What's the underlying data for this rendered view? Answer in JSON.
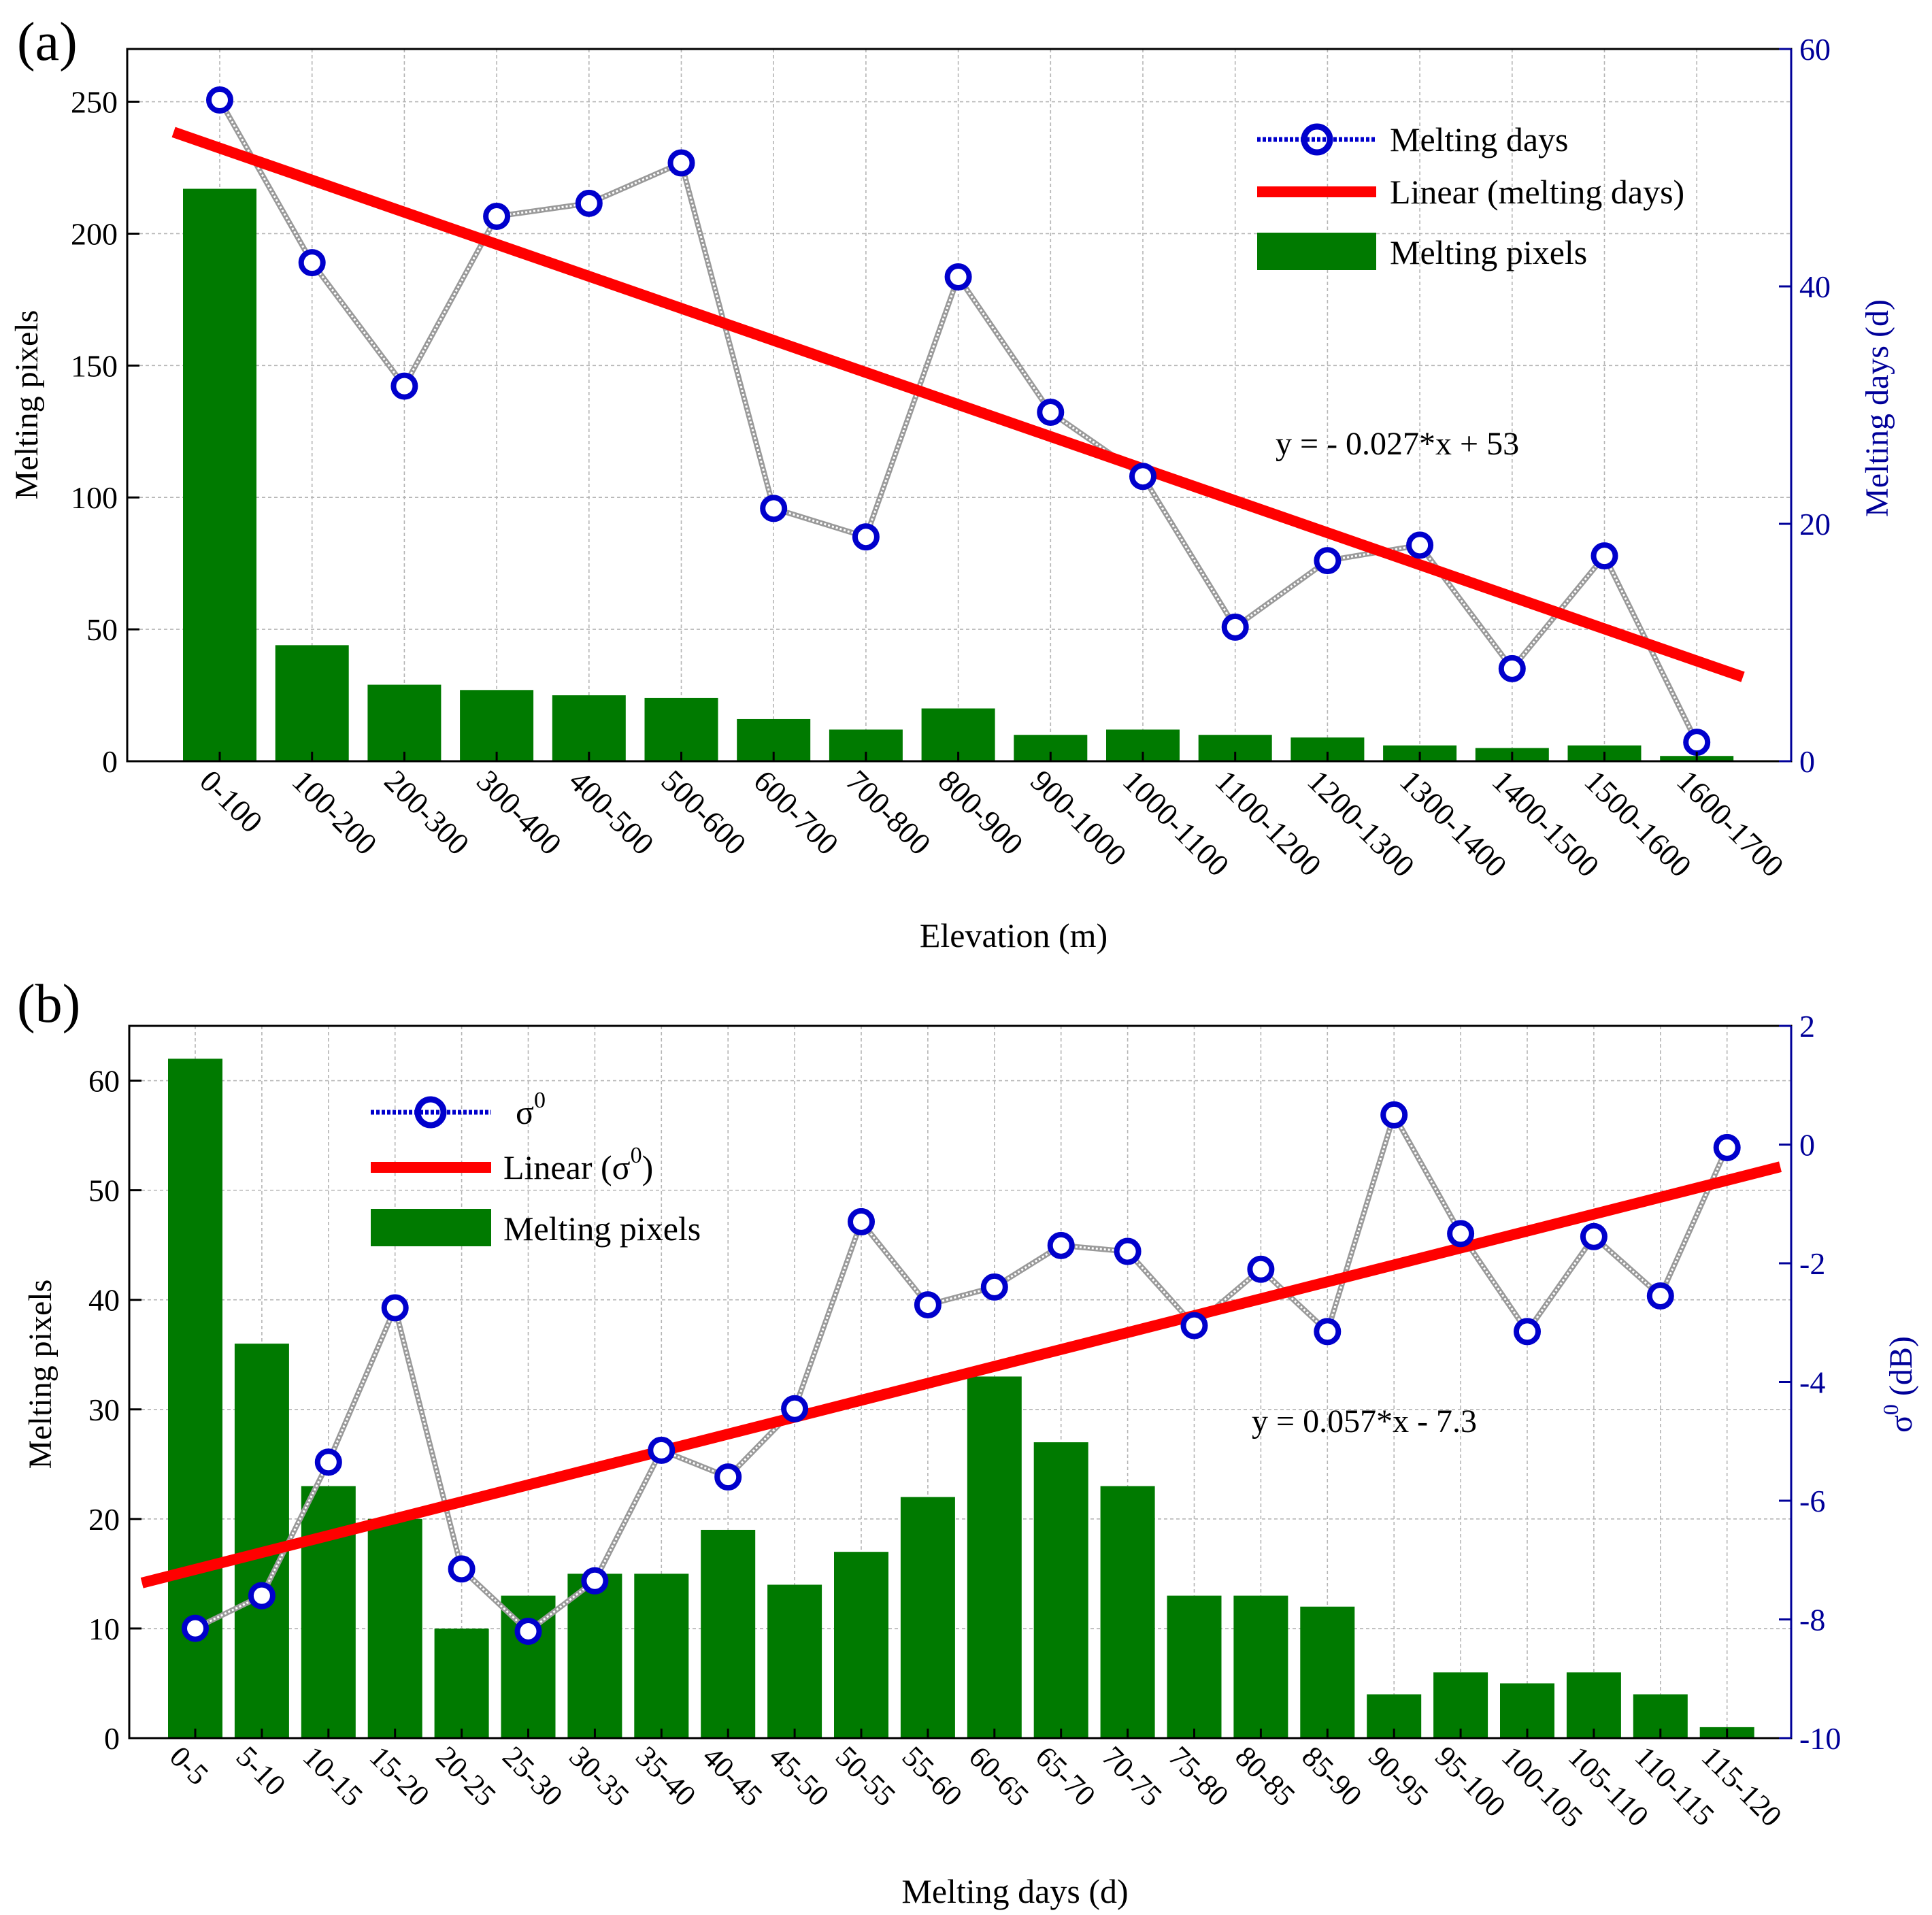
{
  "chart_data": [
    {
      "panel_label": "(a)",
      "type": "bar",
      "xlabel": "Elevation (m)",
      "ylabel": "Melting pixels",
      "y2label": "Melting days (d)",
      "ylim": [
        0,
        270
      ],
      "y2lim": [
        0,
        60
      ],
      "yticks": [
        0,
        50,
        100,
        150,
        200,
        250
      ],
      "y2ticks": [
        0,
        20,
        40,
        60
      ],
      "categories": [
        "0-100",
        "100-200",
        "200-300",
        "300-400",
        "400-500",
        "500-600",
        "600-700",
        "700-800",
        "800-900",
        "900-1000",
        "1000-1100",
        "1100-1200",
        "1200-1300",
        "1300-1400",
        "1400-1500",
        "1500-1600",
        "1600-1700"
      ],
      "series": [
        {
          "name": "Melting pixels",
          "kind": "bar",
          "axis": "left",
          "color": "#007a00",
          "values": [
            217,
            44,
            29,
            27,
            25,
            24,
            16,
            12,
            20,
            10,
            12,
            10,
            9,
            6,
            5,
            6,
            2
          ]
        },
        {
          "name": "Melting days",
          "kind": "line-markers",
          "axis": "right",
          "color": "#0000cc",
          "values": [
            55.7,
            42,
            31.6,
            45.9,
            47,
            50.4,
            21.3,
            18.9,
            40.8,
            29.4,
            24,
            11.3,
            16.9,
            18.2,
            7.8,
            17.3,
            1.6
          ]
        },
        {
          "name": "Linear (melting days)",
          "kind": "trend",
          "axis": "right",
          "color": "#ff0000",
          "slope": -0.027,
          "intercept": 53,
          "x_from": 0,
          "x_to": 1700
        }
      ],
      "legend": [
        "Melting days",
        "Linear (melting days)",
        "Melting pixels"
      ],
      "legend_position": "top-right",
      "annotation": "y = - 0.027*x + 53"
    },
    {
      "panel_label": "(b)",
      "type": "bar",
      "xlabel": "Melting days (d)",
      "ylabel": "Melting pixels",
      "y2label_base": "σ",
      "y2label_sup": "0",
      "y2label_unit": "(dB)",
      "ylim": [
        0,
        65
      ],
      "y2lim": [
        -10,
        2
      ],
      "yticks": [
        0,
        10,
        20,
        30,
        40,
        50,
        60
      ],
      "y2ticks": [
        -10,
        -8,
        -6,
        -4,
        -2,
        0,
        2
      ],
      "categories": [
        "0-5",
        "5-10",
        "10-15",
        "15-20",
        "20-25",
        "25-30",
        "30-35",
        "35-40",
        "40-45",
        "45-50",
        "50-55",
        "55-60",
        "60-65",
        "65-70",
        "70-75",
        "75-80",
        "80-85",
        "85-90",
        "90-95",
        "95-100",
        "100-105",
        "105-110",
        "110-115",
        "115-120"
      ],
      "series": [
        {
          "name": "Melting pixels",
          "kind": "bar",
          "axis": "left",
          "color": "#007a00",
          "values": [
            62,
            36,
            23,
            20,
            10,
            13,
            15,
            15,
            19,
            14,
            17,
            22,
            33,
            27,
            23,
            13,
            13,
            12,
            4,
            6,
            5,
            6,
            4,
            1
          ]
        },
        {
          "name": "σ0",
          "kind": "line-markers",
          "axis": "right",
          "color": "#0000cc",
          "values": [
            -8.15,
            -7.6,
            -5.35,
            -2.75,
            -7.15,
            -8.2,
            -7.35,
            -5.15,
            -5.6,
            -4.45,
            -1.3,
            -2.7,
            -2.4,
            -1.7,
            -1.8,
            -3.05,
            -2.1,
            -3.15,
            0.5,
            -1.5,
            -3.15,
            -1.55,
            -2.55,
            -0.05
          ]
        },
        {
          "name": "Linear (σ0)",
          "kind": "trend",
          "axis": "right",
          "color": "#ff0000",
          "slope": 0.057,
          "intercept": -7.3,
          "x_from": -1.5,
          "x_to": 121.5
        }
      ],
      "legend_position": "top-left",
      "annotation": "y = 0.057*x - 7.3"
    }
  ],
  "legend_b": {
    "sigma_symbol": "σ",
    "sigma_sup": "0",
    "linear_prefix": "Linear (",
    "linear_suffix": ")",
    "pixels_label": "Melting pixels"
  }
}
